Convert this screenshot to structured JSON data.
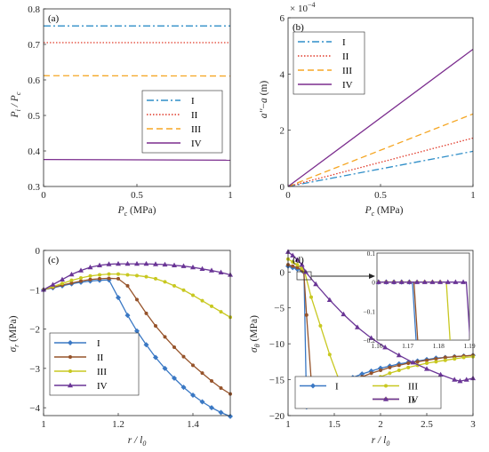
{
  "chart_data": [
    {
      "type": "line",
      "panel": "(a)",
      "xlabel": "P_c (MPa)",
      "ylabel": "P_i / P_c",
      "xlim": [
        0,
        1
      ],
      "ylim": [
        0.3,
        0.8
      ],
      "xticks": [
        "0",
        "0.5",
        "1"
      ],
      "yticks": [
        "0.3",
        "0.4",
        "0.5",
        "0.6",
        "0.7",
        "0.8"
      ],
      "legend": "center-right",
      "series": [
        {
          "name": "I",
          "color": "#2f8ec8",
          "dash": "8 3 2 3",
          "x": [
            0,
            1
          ],
          "y": [
            0.752,
            0.752
          ]
        },
        {
          "name": "II",
          "color": "#e03a2a",
          "dash": "1.5 2",
          "x": [
            0,
            1
          ],
          "y": [
            0.705,
            0.705
          ]
        },
        {
          "name": "III",
          "color": "#f5a623",
          "dash": "7 4",
          "x": [
            0,
            1
          ],
          "y": [
            0.612,
            0.611
          ]
        },
        {
          "name": "IV",
          "color": "#7b2d8e",
          "dash": "",
          "x": [
            0,
            1
          ],
          "y": [
            0.376,
            0.374
          ]
        }
      ]
    },
    {
      "type": "line",
      "panel": "(b)",
      "xlabel": "P_c (MPa)",
      "ylabel": "a'' - a (m)",
      "scale_label": "× 10^-4",
      "xlim": [
        0,
        1
      ],
      "ylim": [
        0,
        6
      ],
      "xticks": [
        "0",
        "0.5",
        "1"
      ],
      "yticks": [
        "0",
        "2",
        "4",
        "6"
      ],
      "legend": "top-left",
      "series": [
        {
          "name": "I",
          "color": "#2f8ec8",
          "dash": "8 3 2 3",
          "x": [
            0,
            1
          ],
          "y": [
            0,
            1.25
          ]
        },
        {
          "name": "II",
          "color": "#e03a2a",
          "dash": "1.5 2",
          "x": [
            0,
            1
          ],
          "y": [
            0,
            1.72
          ]
        },
        {
          "name": "III",
          "color": "#f5a623",
          "dash": "7 4",
          "x": [
            0,
            1
          ],
          "y": [
            0,
            2.58
          ]
        },
        {
          "name": "IV",
          "color": "#7b2d8e",
          "dash": "",
          "x": [
            0,
            1
          ],
          "y": [
            0,
            4.88
          ]
        }
      ]
    },
    {
      "type": "line",
      "panel": "(c)",
      "xlabel": "r / l_0",
      "ylabel": "σ_r (MPa)",
      "xlim": [
        1,
        1.5
      ],
      "ylim": [
        -4.2,
        0
      ],
      "xticks": [
        "1",
        "1.2",
        "1.4"
      ],
      "yticks": [
        "0",
        "-1",
        "-2",
        "-3",
        "-4"
      ],
      "legend": "bottom-left",
      "series": [
        {
          "name": "I",
          "color": "#3a78c4",
          "marker": "diamond",
          "x": [
            1.0,
            1.025,
            1.05,
            1.075,
            1.1,
            1.125,
            1.15,
            1.175,
            1.2,
            1.225,
            1.25,
            1.275,
            1.3,
            1.325,
            1.35,
            1.375,
            1.4,
            1.425,
            1.45,
            1.475,
            1.5
          ],
          "y": [
            -1.0,
            -0.95,
            -0.9,
            -0.85,
            -0.81,
            -0.78,
            -0.76,
            -0.75,
            -1.2,
            -1.65,
            -2.05,
            -2.4,
            -2.72,
            -3.0,
            -3.25,
            -3.48,
            -3.68,
            -3.85,
            -4.0,
            -4.12,
            -4.22
          ]
        },
        {
          "name": "II",
          "color": "#96532a",
          "marker": "circle",
          "x": [
            1.0,
            1.025,
            1.05,
            1.075,
            1.1,
            1.125,
            1.15,
            1.175,
            1.2,
            1.225,
            1.25,
            1.275,
            1.3,
            1.325,
            1.35,
            1.375,
            1.4,
            1.425,
            1.45,
            1.475,
            1.5
          ],
          "y": [
            -1.0,
            -0.94,
            -0.88,
            -0.83,
            -0.78,
            -0.74,
            -0.72,
            -0.71,
            -0.72,
            -0.9,
            -1.25,
            -1.6,
            -1.92,
            -2.2,
            -2.46,
            -2.7,
            -2.92,
            -3.12,
            -3.32,
            -3.5,
            -3.65
          ]
        },
        {
          "name": "III",
          "color": "#c8c820",
          "marker": "circle",
          "x": [
            1.0,
            1.025,
            1.05,
            1.075,
            1.1,
            1.125,
            1.15,
            1.175,
            1.2,
            1.225,
            1.25,
            1.275,
            1.3,
            1.325,
            1.35,
            1.375,
            1.4,
            1.425,
            1.45,
            1.475,
            1.5
          ],
          "y": [
            -1.0,
            -0.92,
            -0.84,
            -0.76,
            -0.7,
            -0.65,
            -0.62,
            -0.6,
            -0.6,
            -0.62,
            -0.64,
            -0.67,
            -0.72,
            -0.8,
            -0.9,
            -1.01,
            -1.14,
            -1.28,
            -1.42,
            -1.56,
            -1.7
          ]
        },
        {
          "name": "IV",
          "color": "#6a3596",
          "marker": "triangle",
          "x": [
            1.0,
            1.025,
            1.05,
            1.075,
            1.1,
            1.125,
            1.15,
            1.175,
            1.2,
            1.225,
            1.25,
            1.275,
            1.3,
            1.325,
            1.35,
            1.375,
            1.4,
            1.425,
            1.45,
            1.475,
            1.5
          ],
          "y": [
            -1.0,
            -0.87,
            -0.74,
            -0.61,
            -0.51,
            -0.43,
            -0.38,
            -0.35,
            -0.34,
            -0.34,
            -0.34,
            -0.34,
            -0.35,
            -0.36,
            -0.38,
            -0.4,
            -0.43,
            -0.47,
            -0.51,
            -0.56,
            -0.62
          ]
        }
      ]
    },
    {
      "type": "line",
      "panel": "(d)",
      "xlabel": "r / l_0",
      "ylabel": "σ_θ (MPa)",
      "xlim": [
        1,
        3
      ],
      "ylim": [
        -20,
        3
      ],
      "xticks": [
        "1",
        "1.5",
        "2",
        "2.5",
        "3"
      ],
      "yticks": [
        "0",
        "-5",
        "-10",
        "-15",
        "-20"
      ],
      "legend": "bottom-center",
      "inset": {
        "xlim": [
          1.16,
          1.19
        ],
        "ylim": [
          -0.2,
          0.1
        ],
        "xticks": [
          "1.16",
          "1.17",
          "1.18",
          "1.19"
        ],
        "yticks": [
          "0.1",
          "0",
          "-0.1",
          "-0.2"
        ]
      },
      "series": [
        {
          "name": "I",
          "color": "#3a78c4",
          "marker": "diamond",
          "x": [
            1.0,
            1.05,
            1.1,
            1.15,
            1.172,
            1.2,
            1.3,
            1.4,
            1.5,
            1.6,
            1.7,
            1.8,
            1.9,
            2.0,
            2.1,
            2.2,
            2.3,
            2.4,
            2.5,
            2.6,
            2.7,
            2.8,
            2.9,
            3.0
          ],
          "y": [
            0.8,
            0.6,
            0.4,
            0.2,
            0.0,
            -18.8,
            -17.8,
            -16.8,
            -16.0,
            -15.3,
            -14.7,
            -14.2,
            -13.8,
            -13.4,
            -13.1,
            -12.8,
            -12.6,
            -12.4,
            -12.2,
            -12.0,
            -11.9,
            -11.8,
            -11.7,
            -11.6
          ]
        },
        {
          "name": "II",
          "color": "#96532a",
          "marker": "circle",
          "x": [
            1.0,
            1.05,
            1.1,
            1.15,
            1.17,
            1.2,
            1.25,
            1.3,
            1.4,
            1.5,
            1.6,
            1.7,
            1.8,
            1.9,
            2.0,
            2.1,
            2.2,
            2.3,
            2.4,
            2.5,
            2.6,
            2.7,
            2.8,
            2.9,
            3.0
          ],
          "y": [
            1.0,
            0.8,
            0.6,
            0.3,
            0.0,
            -6.0,
            -15.0,
            -18.3,
            -17.4,
            -16.5,
            -15.8,
            -15.2,
            -14.6,
            -14.1,
            -13.7,
            -13.3,
            -13.0,
            -12.7,
            -12.5,
            -12.3,
            -12.1,
            -11.9,
            -11.8,
            -11.7,
            -11.6
          ]
        },
        {
          "name": "III",
          "color": "#c8c820",
          "marker": "circle",
          "x": [
            1.0,
            1.05,
            1.1,
            1.15,
            1.18,
            1.25,
            1.35,
            1.45,
            1.55,
            1.62,
            1.7,
            1.8,
            1.9,
            2.0,
            2.1,
            2.2,
            2.3,
            2.4,
            2.5,
            2.6,
            2.7,
            2.8,
            2.9,
            3.0
          ],
          "y": [
            1.8,
            1.4,
            1.0,
            0.5,
            0.0,
            -3.5,
            -7.5,
            -11.5,
            -15.0,
            -17.0,
            -16.5,
            -15.8,
            -15.2,
            -14.6,
            -14.1,
            -13.7,
            -13.3,
            -13.0,
            -12.7,
            -12.5,
            -12.3,
            -12.1,
            -11.9,
            -11.8
          ]
        },
        {
          "name": "IV",
          "color": "#6a3596",
          "marker": "triangle",
          "x": [
            1.0,
            1.05,
            1.1,
            1.15,
            1.19,
            1.3,
            1.45,
            1.6,
            1.75,
            1.9,
            2.05,
            2.2,
            2.35,
            2.5,
            2.65,
            2.8,
            2.86,
            2.93,
            3.0
          ],
          "y": [
            2.8,
            2.3,
            1.7,
            1.0,
            0.0,
            -1.7,
            -3.9,
            -5.9,
            -7.7,
            -9.2,
            -10.5,
            -11.6,
            -12.6,
            -13.5,
            -14.3,
            -15.0,
            -15.2,
            -15.0,
            -14.8
          ]
        }
      ]
    }
  ]
}
